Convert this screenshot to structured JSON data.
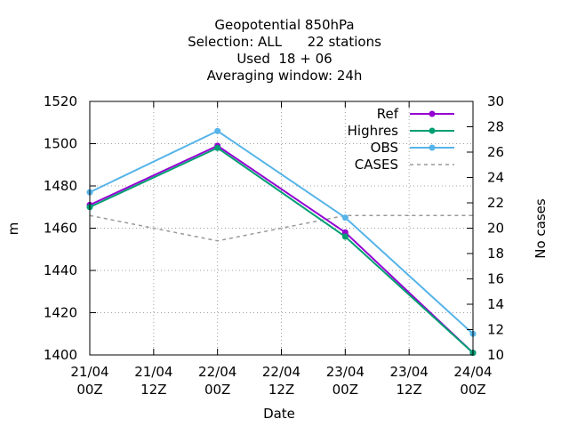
{
  "chart_data": {
    "type": "line",
    "title_lines": [
      "Geopotential 850hPa",
      "Selection: ALL      22 stations",
      "Used  18 + 06",
      "Averaging window: 24h"
    ],
    "xlabel": "Date",
    "ylabel": "m",
    "y2label": "No cases",
    "x_ticks": [
      {
        "x": 0,
        "line1": "21/04",
        "line2": "00Z"
      },
      {
        "x": 12,
        "line1": "21/04",
        "line2": "12Z"
      },
      {
        "x": 24,
        "line1": "22/04",
        "line2": "00Z"
      },
      {
        "x": 36,
        "line1": "22/04",
        "line2": "12Z"
      },
      {
        "x": 48,
        "line1": "23/04",
        "line2": "00Z"
      },
      {
        "x": 60,
        "line1": "23/04",
        "line2": "12Z"
      },
      {
        "x": 72,
        "line1": "24/04",
        "line2": "00Z"
      }
    ],
    "xlim": [
      0,
      72
    ],
    "ylim": [
      1400,
      1520
    ],
    "y_ticks": [
      1400,
      1420,
      1440,
      1460,
      1480,
      1500,
      1520
    ],
    "y2lim": [
      10,
      30
    ],
    "y2_ticks": [
      10,
      12,
      14,
      16,
      18,
      20,
      22,
      24,
      26,
      28,
      30
    ],
    "grid": true,
    "legend_position": "top-right",
    "series": [
      {
        "name": "Ref",
        "axis": "y",
        "color": "#9400d3",
        "style": "solid",
        "marker": "circle",
        "x": [
          0,
          24,
          48,
          72
        ],
        "y": [
          1471,
          1499,
          1458,
          1401
        ]
      },
      {
        "name": "Highres",
        "axis": "y",
        "color": "#009e73",
        "style": "solid",
        "marker": "circle",
        "x": [
          0,
          24,
          48,
          72
        ],
        "y": [
          1470,
          1498,
          1456,
          1401
        ]
      },
      {
        "name": "OBS",
        "axis": "y",
        "color": "#56b4e9",
        "style": "solid",
        "marker": "circle",
        "x": [
          0,
          24,
          48,
          72
        ],
        "y": [
          1477,
          1506,
          1465,
          1410
        ]
      },
      {
        "name": "CASES",
        "axis": "y2",
        "color": "#999999",
        "style": "dashed",
        "marker": "none",
        "x": [
          0,
          24,
          48,
          72
        ],
        "y": [
          21,
          19,
          21,
          21
        ]
      }
    ]
  }
}
